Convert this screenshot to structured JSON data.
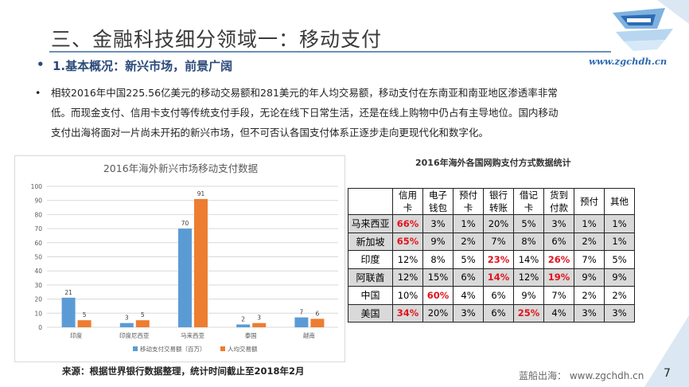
{
  "slide": {
    "title": "三、金融科技细分领域一：移动支付",
    "subtitle": "1.基本概况：新兴市场，前景广阔",
    "paragraph_lines": [
      "相较2016年中国225.56亿美元的移动交易额和281美元的年人均交易额，移动支付在东南亚和南亚地区渗透率非常",
      "低。而现金支付、信用卡支付等传统支付手段，无论在线下日常生活，还是在线上购物中仍占有主导地位。国内移动",
      "支付出海将面对一片尚未开拓的新兴市场，但不可否认各国支付体系正逐步走向更现代化和数字化。"
    ],
    "source": "来源：根据世界银行数据整理，统计时间截止至2018年2月",
    "footer_brand": "蓝船出海： www.zgchdh.cn",
    "page_number": "7",
    "logo_url": "www.zgchdh.cn",
    "bullet_glyph": "•"
  },
  "colors": {
    "series_mobile": "#5b9bd5",
    "series_percapita": "#ed7d31",
    "highlight_red": "#e0141e",
    "title_line": "#6b8fb8"
  },
  "chart_data": {
    "type": "bar",
    "title": "2016年海外新兴市场移动支付数据",
    "categories": [
      "印度",
      "印度尼西亚",
      "马来西亚",
      "泰国",
      "越南"
    ],
    "series": [
      {
        "name": "移动支付交易额（百万）",
        "values": [
          21,
          3,
          70,
          2,
          7
        ]
      },
      {
        "name": "人均交易额",
        "values": [
          5,
          5,
          91,
          3,
          6
        ]
      }
    ],
    "ylim": [
      0,
      100
    ],
    "yticks": [
      0,
      10,
      20,
      30,
      40,
      50,
      60,
      70,
      80,
      90,
      100
    ],
    "grid": true,
    "legend": "bottom"
  },
  "table": {
    "title": "2016年海外各国网购支付方式数据统计",
    "headers": [
      "",
      "信用卡",
      "电子钱包",
      "预付卡",
      "银行转账",
      "借记卡",
      "货到付款",
      "预付",
      "其他"
    ],
    "rows": [
      {
        "country": "马来西亚",
        "values": [
          "66%",
          "3%",
          "1%",
          "20%",
          "5%",
          "3%",
          "1%",
          "1%"
        ],
        "red": [
          0
        ],
        "shade": true
      },
      {
        "country": "新加坡",
        "values": [
          "65%",
          "9%",
          "2%",
          "7%",
          "8%",
          "6%",
          "2%",
          "1%"
        ],
        "red": [
          0
        ],
        "shade": true
      },
      {
        "country": "印度",
        "values": [
          "12%",
          "8%",
          "5%",
          "23%",
          "14%",
          "26%",
          "7%",
          "5%"
        ],
        "red": [
          3,
          5
        ],
        "shade": false
      },
      {
        "country": "阿联酋",
        "values": [
          "12%",
          "15%",
          "6%",
          "14%",
          "12%",
          "19%",
          "9%",
          "9%"
        ],
        "red": [
          3,
          5
        ],
        "shade": true
      },
      {
        "country": "中国",
        "values": [
          "10%",
          "60%",
          "4%",
          "6%",
          "9%",
          "7%",
          "2%",
          "2%"
        ],
        "red": [
          1
        ],
        "shade": false
      },
      {
        "country": "美国",
        "values": [
          "34%",
          "20%",
          "3%",
          "6%",
          "25%",
          "4%",
          "3%",
          "3%"
        ],
        "red": [
          0,
          4
        ],
        "shade": true
      }
    ]
  }
}
